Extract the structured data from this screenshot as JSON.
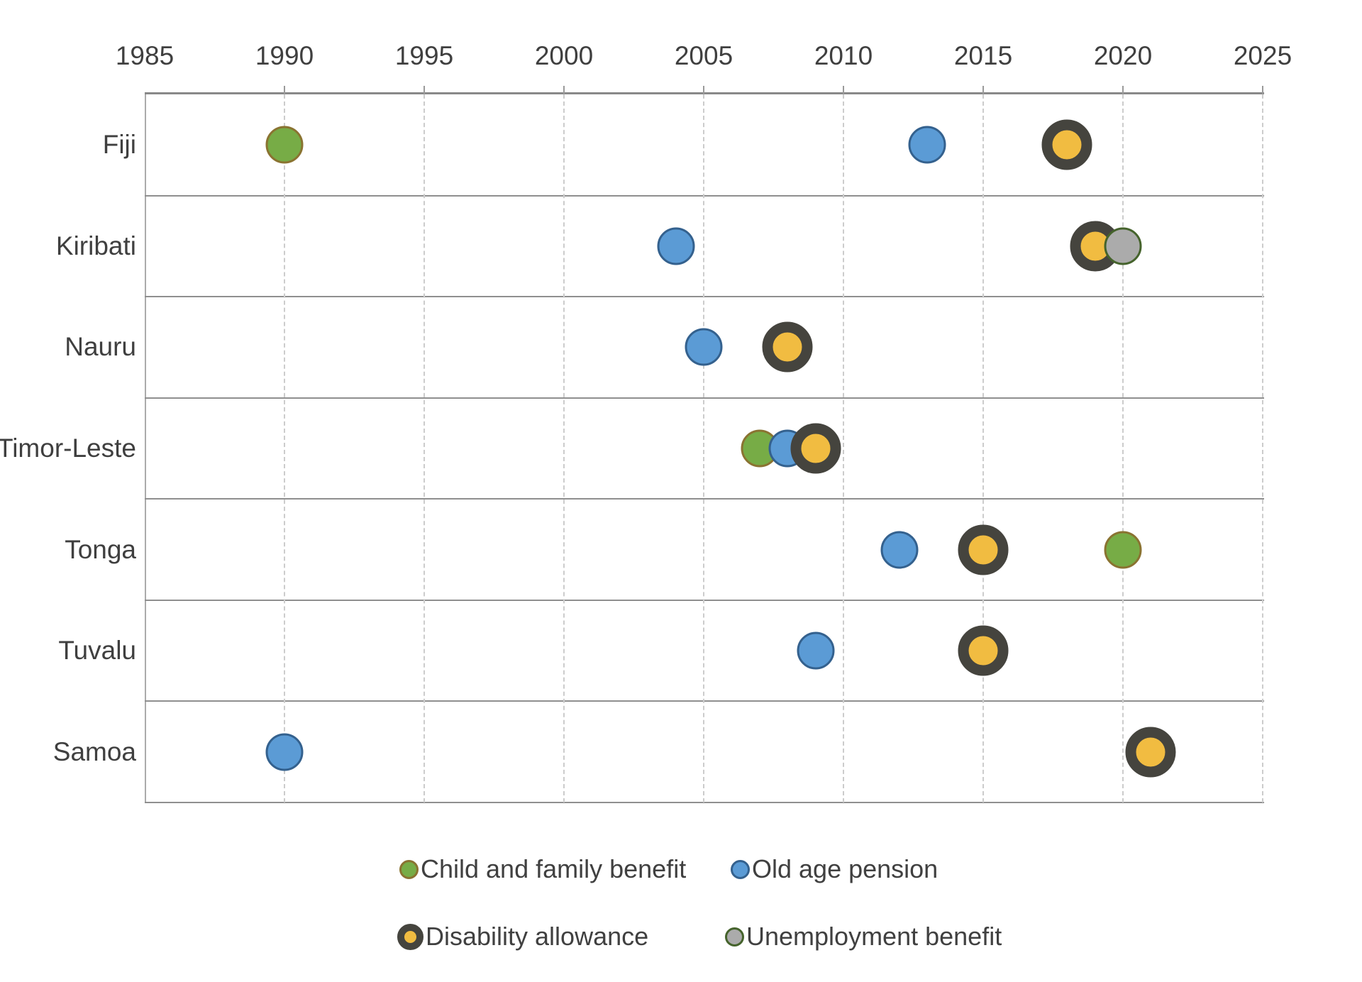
{
  "chart_data": {
    "type": "scatter",
    "description": "Timeline dot plot of the year social protection schemes were introduced in Pacific countries",
    "x_axis": {
      "min": 1985,
      "max": 2025,
      "tick_interval": 5,
      "tick_labels": [
        "1985",
        "1990",
        "1995",
        "2000",
        "2005",
        "2010",
        "2015",
        "2020",
        "2025"
      ],
      "gridlines": "dashed vertical every 5 years"
    },
    "categories": [
      "Fiji",
      "Kiribati",
      "Nauru",
      "Timor-Leste",
      "Tonga",
      "Tuvalu",
      "Samoa"
    ],
    "series": [
      {
        "key": "child",
        "name": "Child and family benefit",
        "fill_color": "#77ac46",
        "border_color": "#8a7331",
        "points": [
          {
            "category": "Fiji",
            "year": 1990
          },
          {
            "category": "Timor-Leste",
            "year": 2007
          },
          {
            "category": "Tonga",
            "year": 2020
          }
        ]
      },
      {
        "key": "oldage",
        "name": "Old age pension",
        "fill_color": "#5b9bd5",
        "border_color": "#34618e",
        "points": [
          {
            "category": "Fiji",
            "year": 2013
          },
          {
            "category": "Kiribati",
            "year": 2004
          },
          {
            "category": "Nauru",
            "year": 2005
          },
          {
            "category": "Timor-Leste",
            "year": 2008
          },
          {
            "category": "Tonga",
            "year": 2012
          },
          {
            "category": "Tuvalu",
            "year": 2009
          },
          {
            "category": "Samoa",
            "year": 1990
          }
        ]
      },
      {
        "key": "disability",
        "name": "Disability allowance",
        "fill_color": "#f1bc41",
        "border_color": "#45443e",
        "points": [
          {
            "category": "Fiji",
            "year": 2018
          },
          {
            "category": "Kiribati",
            "year": 2019
          },
          {
            "category": "Nauru",
            "year": 2008
          },
          {
            "category": "Timor-Leste",
            "year": 2009
          },
          {
            "category": "Tonga",
            "year": 2015
          },
          {
            "category": "Tuvalu",
            "year": 2015
          },
          {
            "category": "Samoa",
            "year": 2021
          }
        ]
      },
      {
        "key": "unemployment",
        "name": "Unemployment benefit",
        "fill_color": "#ababab",
        "border_color": "#45632c",
        "points": [
          {
            "category": "Kiribati",
            "year": 2020
          }
        ]
      }
    ],
    "legend": {
      "position": "bottom",
      "items": [
        {
          "series_key": "child",
          "label": "Child and family benefit"
        },
        {
          "series_key": "oldage",
          "label": "Old age pension"
        },
        {
          "series_key": "disability",
          "label": "Disability allowance"
        },
        {
          "series_key": "unemployment",
          "label": "Unemployment benefit"
        }
      ]
    }
  }
}
